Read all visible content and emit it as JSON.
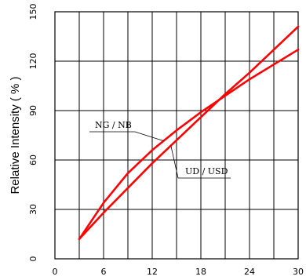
{
  "chart_data": {
    "type": "line",
    "title": "",
    "xlabel": "",
    "ylabel": "Relative Intensity ( % )",
    "xlim": [
      0,
      30
    ],
    "ylim": [
      0,
      150
    ],
    "xticks": [
      0,
      6,
      12,
      18,
      24,
      30
    ],
    "yticks": [
      0,
      30,
      60,
      90,
      120,
      150
    ],
    "grid": true,
    "series": [
      {
        "name": "NG / NB",
        "color": "#ff0000",
        "x": [
          3,
          4.5,
          6,
          9,
          12,
          15,
          18,
          21,
          24,
          27,
          30
        ],
        "y": [
          12,
          23,
          34,
          52,
          66,
          78,
          89,
          99,
          109,
          118,
          127
        ]
      },
      {
        "name": "UD / USD",
        "color": "#ff0000",
        "x": [
          3,
          6,
          9,
          12,
          15,
          18,
          21,
          24,
          27,
          30
        ],
        "y": [
          12,
          28,
          43,
          58,
          72,
          86,
          100,
          113,
          127,
          141
        ]
      }
    ],
    "annotations": [
      {
        "text": "NG / NB",
        "series": 0,
        "x": 13.4
      },
      {
        "text": "UD / USD",
        "series": 1,
        "x": 14.3
      }
    ]
  }
}
